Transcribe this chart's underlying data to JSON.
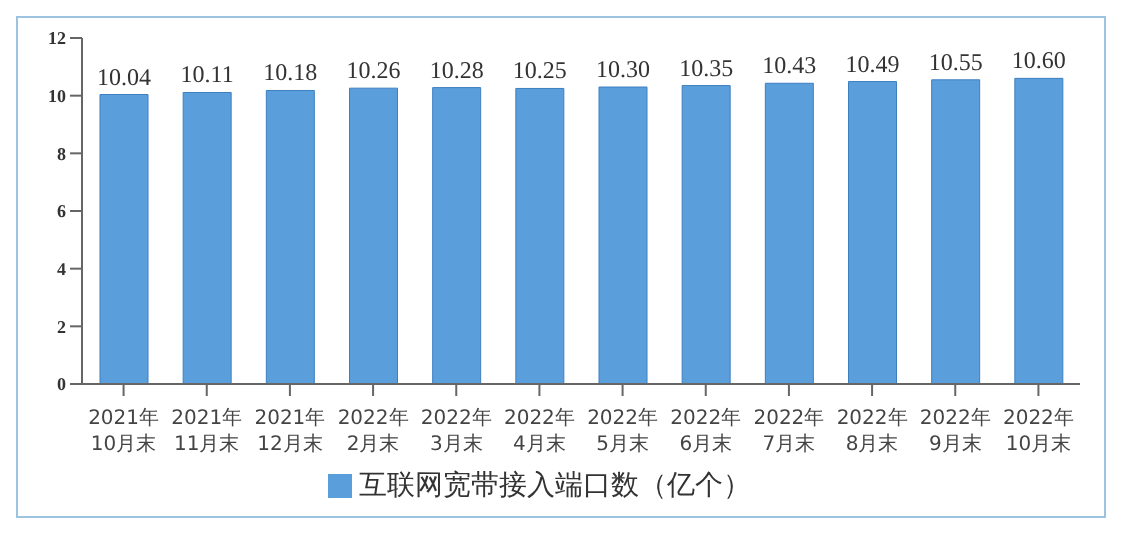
{
  "chart_data": {
    "type": "bar",
    "categories": [
      "2021年\n10月末",
      "2021年\n11月末",
      "2021年\n12月末",
      "2022年\n2月末",
      "2022年\n3月末",
      "2022年\n4月末",
      "2022年\n5月末",
      "2022年\n6月末",
      "2022年\n7月末",
      "2022年\n8月末",
      "2022年\n9月末",
      "2022年\n10月末"
    ],
    "series": [
      {
        "name": "互联网宽带接入端口数（亿个）",
        "color": "#5a9fdc",
        "values": [
          10.04,
          10.11,
          10.18,
          10.26,
          10.28,
          10.25,
          10.3,
          10.35,
          10.43,
          10.49,
          10.55,
          10.6
        ],
        "value_labels": [
          "10.04",
          "10.11",
          "10.18",
          "10.26",
          "10.28",
          "10.25",
          "10.30",
          "10.35",
          "10.43",
          "10.49",
          "10.55",
          "10.60"
        ]
      }
    ],
    "ylim": [
      0,
      12
    ],
    "yticks": [
      0,
      2,
      4,
      6,
      8,
      10,
      12
    ],
    "grid": false,
    "legend": "bottom"
  }
}
